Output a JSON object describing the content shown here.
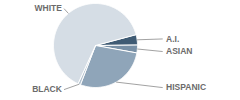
{
  "chart_data": {
    "type": "pie",
    "categories": [
      "A.I.",
      "ASIAN",
      "HISPANIC",
      "BLACK",
      "WHITE"
    ],
    "values": [
      4,
      3,
      28,
      1,
      64
    ],
    "colors": [
      "#3f5b74",
      "#7890a6",
      "#8fa5b9",
      "#b4c2cf",
      "#d5dde5"
    ]
  }
}
